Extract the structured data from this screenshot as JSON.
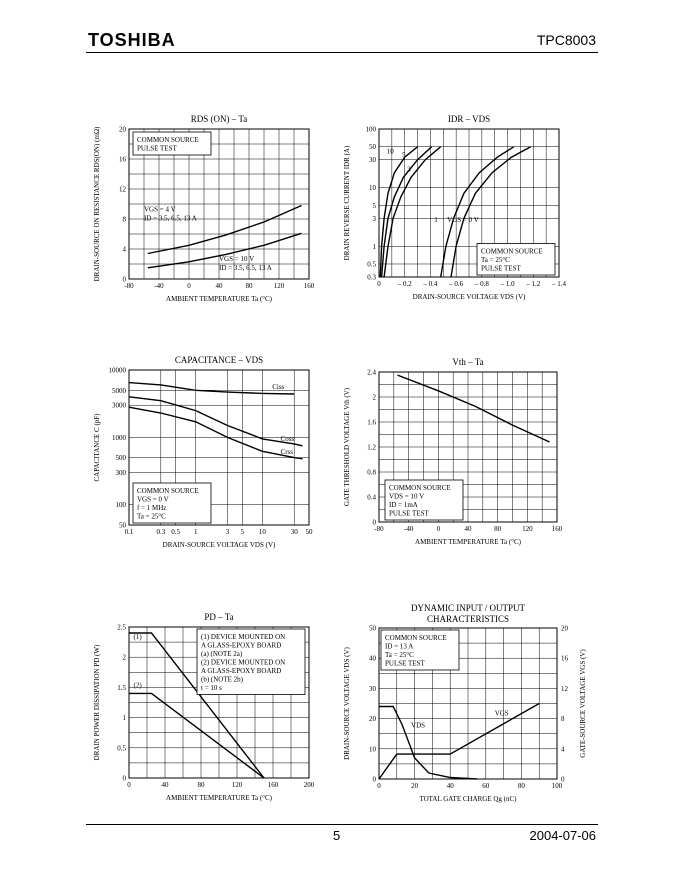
{
  "header": {
    "brand": "TOSHIBA",
    "part": "TPC8003"
  },
  "footer": {
    "page": "5",
    "date": "2004-07-06"
  },
  "chart_data": [
    {
      "id": "rds",
      "type": "line",
      "title": "RDS (ON) – Ta",
      "xlabel": "AMBIENT TEMPERATURE  Ta  (°C)",
      "ylabel": "DRAIN-SOURCE ON RESISTANCE  RDS(ON)  (mΩ)",
      "xlim": [
        -80,
        160
      ],
      "ylim": [
        0,
        20
      ],
      "xticks": [
        -80,
        -40,
        0,
        40,
        80,
        120,
        160
      ],
      "yticks": [
        0,
        4,
        8,
        12,
        16,
        20
      ],
      "box": [
        "COMMON SOURCE",
        "PULSE TEST"
      ],
      "annotations": [
        {
          "lines": [
            "VGS = 4 V",
            "ID = 3.5, 6.5, 13 A"
          ],
          "x": -60,
          "y": 9
        },
        {
          "lines": [
            "VGS = 10 V",
            "ID = 3.5, 6.5, 13 A"
          ],
          "x": 40,
          "y": 2.4
        }
      ],
      "series": [
        {
          "x": [
            -55,
            0,
            50,
            100,
            150
          ],
          "y": [
            3.4,
            4.5,
            5.9,
            7.6,
            9.8
          ]
        },
        {
          "x": [
            -55,
            0,
            50,
            100,
            150
          ],
          "y": [
            1.5,
            2.3,
            3.3,
            4.5,
            6.1
          ]
        }
      ]
    },
    {
      "id": "idr",
      "type": "line",
      "title": "IDR – VDS",
      "xlabel": "DRAIN-SOURCE VOLTAGE  VDS  (V)",
      "ylabel": "DRAIN REVERSE CURRENT  IDR  (A)",
      "xlim": [
        0,
        -1.4
      ],
      "ylim": [
        0.3,
        100
      ],
      "yscale": "log",
      "xticks": [
        0,
        -0.2,
        -0.4,
        -0.6,
        -0.8,
        -1.0,
        -1.2,
        -1.4
      ],
      "xticklabels": [
        "0",
        "– 0.2",
        "– 0.4",
        "– 0.6",
        "– 0.8",
        "– 1.0",
        "– 1.2",
        "– 1.4"
      ],
      "yticks": [
        0.3,
        0.5,
        1,
        3,
        5,
        10,
        30,
        50,
        100
      ],
      "box": [
        "COMMON SOURCE",
        "Ta = 25°C",
        "PULSE TEST"
      ],
      "annotations": [
        {
          "lines": [
            "10"
          ],
          "x": -0.06,
          "y": 38
        },
        {
          "lines": [
            "5"
          ],
          "x": -0.18,
          "y": 33
        },
        {
          "lines": [
            "3"
          ],
          "x": -0.22,
          "y": 19
        },
        {
          "lines": [
            "1"
          ],
          "x": -0.43,
          "y": 2.6
        },
        {
          "lines": [
            "VGS = 0 V"
          ],
          "x": -0.53,
          "y": 2.6
        }
      ],
      "series": [
        {
          "name": "10",
          "x": [
            -0.01,
            -0.02,
            -0.04,
            -0.07,
            -0.12,
            -0.2,
            -0.3
          ],
          "y": [
            0.3,
            1,
            3,
            8,
            18,
            33,
            50
          ]
        },
        {
          "name": "5",
          "x": [
            -0.02,
            -0.04,
            -0.07,
            -0.12,
            -0.19,
            -0.3,
            -0.41
          ],
          "y": [
            0.3,
            1,
            3,
            7,
            15,
            30,
            50
          ]
        },
        {
          "name": "3",
          "x": [
            -0.04,
            -0.07,
            -0.11,
            -0.17,
            -0.25,
            -0.36,
            -0.48
          ],
          "y": [
            0.3,
            1,
            3,
            7,
            15,
            30,
            50
          ]
        },
        {
          "name": "1",
          "x": [
            -0.48,
            -0.52,
            -0.58,
            -0.66,
            -0.78,
            -0.92,
            -1.05
          ],
          "y": [
            0.3,
            1,
            3,
            8,
            18,
            33,
            50
          ]
        },
        {
          "name": "0",
          "x": [
            -0.56,
            -0.6,
            -0.66,
            -0.75,
            -0.88,
            -1.03,
            -1.18
          ],
          "y": [
            0.3,
            1,
            3,
            8,
            18,
            33,
            50
          ]
        }
      ]
    },
    {
      "id": "cap",
      "type": "line",
      "title": "CAPACITANCE – VDS",
      "xlabel": "DRAIN-SOURCE VOLTAGE  VDS  (V)",
      "ylabel": "CAPACITANCE  C  (pF)",
      "xscale": "log",
      "yscale": "log",
      "xlim": [
        0.1,
        50
      ],
      "ylim": [
        50,
        10000
      ],
      "xticks": [
        0.1,
        0.3,
        0.5,
        1,
        3,
        5,
        10,
        30,
        50
      ],
      "yticks": [
        50,
        100,
        300,
        500,
        1000,
        3000,
        5000,
        10000
      ],
      "box": [
        "COMMON SOURCE",
        "VGS = 0 V",
        "f = 1 MHz",
        "Ta = 25°C"
      ],
      "series": [
        {
          "name": "Ciss",
          "x": [
            0.1,
            0.3,
            1,
            3,
            10,
            30
          ],
          "y": [
            6500,
            6000,
            5000,
            4700,
            4500,
            4400
          ]
        },
        {
          "name": "Coss",
          "x": [
            0.1,
            0.3,
            1,
            3,
            10,
            30,
            40
          ],
          "y": [
            4000,
            3500,
            2500,
            1500,
            950,
            800,
            750
          ]
        },
        {
          "name": "Crss",
          "x": [
            0.1,
            0.3,
            1,
            3,
            10,
            30,
            40
          ],
          "y": [
            2800,
            2300,
            1700,
            1000,
            620,
            500,
            480
          ]
        }
      ]
    },
    {
      "id": "vth",
      "type": "line",
      "title": "Vth – Ta",
      "xlabel": "AMBIENT TEMPERATURE  Ta  (°C)",
      "ylabel": "GATE THRESHOLD VOLTAGE  Vth  (V)",
      "xlim": [
        -80,
        160
      ],
      "ylim": [
        0,
        2.4
      ],
      "xticks": [
        -80,
        -40,
        0,
        40,
        80,
        120,
        160
      ],
      "yticks": [
        0,
        0.4,
        0.8,
        1.2,
        1.6,
        2.0,
        2.4
      ],
      "box": [
        "COMMON SOURCE",
        "VDS = 10 V",
        "ID = 1mA",
        "PULSE TEST"
      ],
      "series": [
        {
          "x": [
            -55,
            0,
            50,
            100,
            150
          ],
          "y": [
            2.35,
            2.1,
            1.85,
            1.55,
            1.28
          ]
        }
      ]
    },
    {
      "id": "pd",
      "type": "line",
      "title": "PD – Ta",
      "xlabel": "AMBIENT TEMPERATURE  Ta  (°C)",
      "ylabel": "DRAIN POWER DISSIPATION  PD  (W)",
      "xlim": [
        0,
        200
      ],
      "ylim": [
        0,
        2.5
      ],
      "xticks": [
        0,
        40,
        80,
        120,
        160,
        200
      ],
      "yticks": [
        0,
        0.5,
        1.0,
        1.5,
        2.0,
        2.5
      ],
      "box": [
        "(1) DEVICE MOUNTED ON",
        "A GLASS-EPOXY BOARD",
        "(a) (NOTE 2a)",
        "(2) DEVICE MOUNTED ON",
        "A GLASS-EPOXY BOARD",
        "(b) (NOTE 2b)",
        "t = 10 s"
      ],
      "annotations": [
        {
          "lines": [
            "(1)"
          ],
          "x": 5,
          "y": 2.3
        },
        {
          "lines": [
            "(2)"
          ],
          "x": 5,
          "y": 1.5
        }
      ],
      "series": [
        {
          "name": "(1)",
          "x": [
            0,
            25,
            150
          ],
          "y": [
            2.4,
            2.4,
            0
          ]
        },
        {
          "name": "(2)",
          "x": [
            0,
            25,
            150
          ],
          "y": [
            1.4,
            1.4,
            0
          ]
        }
      ]
    },
    {
      "id": "dyn",
      "type": "line",
      "title": "DYNAMIC INPUT / OUTPUT",
      "subtitle": "CHARACTERISTICS",
      "xlabel": "TOTAL GATE CHARGE  Qg  (nC)",
      "ylabel": "DRAIN-SOURCE VOLTAGE  VDS  (V)",
      "ylabel2": "GATE-SOURCE VOLTAGE  VGS  (V)",
      "xlim": [
        0,
        100
      ],
      "ylim": [
        0,
        50
      ],
      "ylim2": [
        0,
        20
      ],
      "xticks": [
        0,
        20,
        40,
        60,
        80,
        100
      ],
      "yticks": [
        0,
        10,
        20,
        30,
        40,
        50
      ],
      "yticks2": [
        0,
        4,
        8,
        12,
        16,
        20
      ],
      "box": [
        "COMMON SOURCE",
        "ID = 13 A",
        "Ta = 25°C",
        "PULSE TEST"
      ],
      "annotations": [
        {
          "lines": [
            "VDS"
          ],
          "x": 18,
          "y": 17
        },
        {
          "lines": [
            "VGS"
          ],
          "x": 65,
          "y": 21
        }
      ],
      "series": [
        {
          "name": "VDS",
          "x": [
            0,
            8,
            13,
            20,
            28,
            40,
            55
          ],
          "y": [
            24,
            24,
            18,
            7,
            2,
            0.5,
            0
          ]
        },
        {
          "name": "VGS",
          "axis": "right",
          "x": [
            0,
            10,
            40,
            90
          ],
          "y": [
            0,
            3.3,
            3.3,
            10
          ]
        }
      ]
    }
  ]
}
